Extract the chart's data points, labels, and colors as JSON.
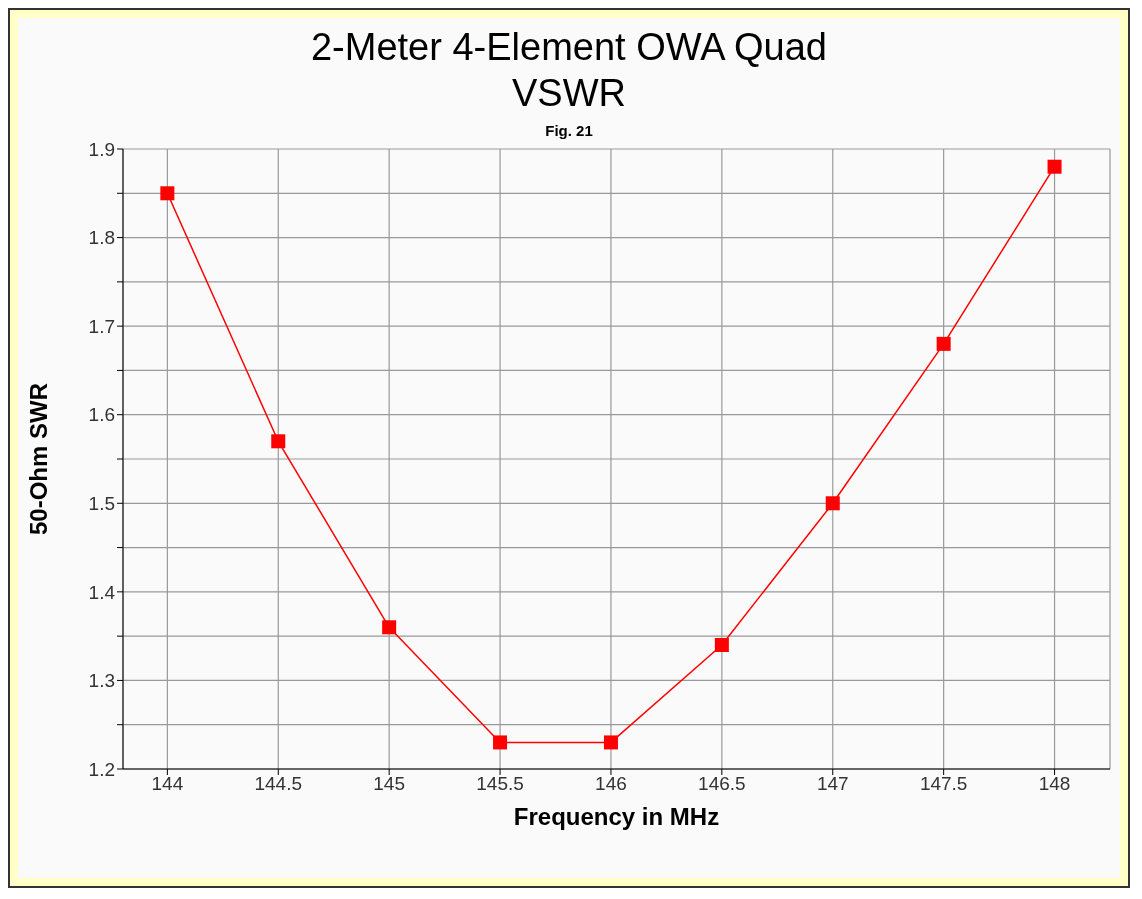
{
  "chart_data": {
    "type": "line",
    "title": "2-Meter 4-Element OWA Quad\nVSWR",
    "subtitle": "Fig. 21",
    "xlabel": "Frequency in MHz",
    "ylabel": "50-Ohm SWR",
    "x": [
      144,
      144.5,
      145,
      145.5,
      146,
      146.5,
      147,
      147.5,
      148
    ],
    "series": [
      {
        "color": "#ff0000",
        "values": [
          1.85,
          1.57,
          1.36,
          1.23,
          1.23,
          1.34,
          1.5,
          1.68,
          1.88
        ]
      }
    ],
    "xlim": [
      143.8,
      148.25
    ],
    "xticks": [
      144,
      144.5,
      145,
      145.5,
      146,
      146.5,
      147,
      147.5,
      148
    ],
    "ylim": [
      1.2,
      1.9
    ],
    "yticks": [
      1.2,
      {
        "value": 1.25,
        "label": null
      },
      1.3,
      {
        "value": 1.35,
        "label": null
      },
      1.4,
      {
        "value": 1.45,
        "label": null
      },
      1.5,
      {
        "value": 1.55,
        "label": null
      },
      1.6,
      {
        "value": 1.65,
        "label": null
      },
      1.7,
      {
        "value": 1.75,
        "label": null
      },
      1.8,
      {
        "value": 1.85,
        "label": null
      },
      1.9
    ],
    "grid": true,
    "marker": "square",
    "line_style": "solid",
    "legend": false
  }
}
